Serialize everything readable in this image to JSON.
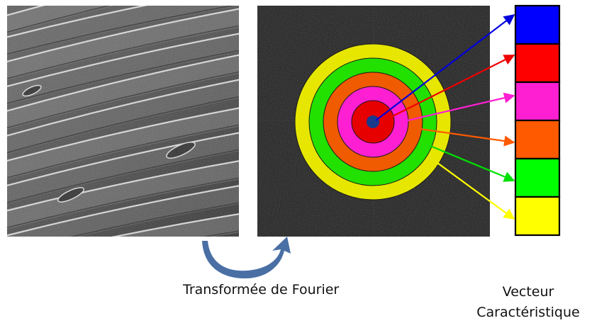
{
  "captions": {
    "fourier": "Transformée de Fourier",
    "vector_line1": "Vecteur",
    "vector_line2": "Caractéristique"
  },
  "colors": {
    "background": "#ffffff",
    "fft_background": "#1c1c1c",
    "transform_arrow": "#4a6fa5",
    "center_dot": "#1a3a8c",
    "box_border": "#000000"
  },
  "rings_outer_to_inner": [
    {
      "name": "yellow",
      "color": "#e6e600"
    },
    {
      "name": "green",
      "color": "#22e000"
    },
    {
      "name": "orange",
      "color": "#f05a00"
    },
    {
      "name": "magenta",
      "color": "#ff1fd2"
    },
    {
      "name": "red",
      "color": "#e60000"
    }
  ],
  "vector_boxes_top_to_bottom": [
    {
      "name": "blue",
      "color": "#0000ff"
    },
    {
      "name": "red",
      "color": "#ff0000"
    },
    {
      "name": "magenta",
      "color": "#ff1fd2"
    },
    {
      "name": "orange",
      "color": "#ff5a00"
    },
    {
      "name": "green",
      "color": "#00ff00"
    },
    {
      "name": "yellow",
      "color": "#ffff00"
    }
  ],
  "feature_arrows": [
    {
      "color": "#0000dd"
    },
    {
      "color": "#ee0000"
    },
    {
      "color": "#ff1fd2"
    },
    {
      "color": "#ff5a00"
    },
    {
      "color": "#00e000"
    },
    {
      "color": "#ffff00"
    }
  ]
}
